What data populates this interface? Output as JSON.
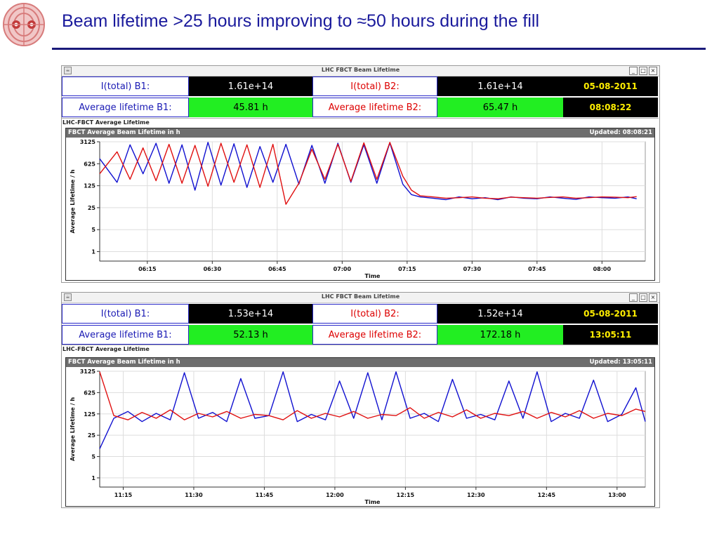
{
  "slide": {
    "title": "Beam lifetime >25 hours improving to ≈50 hours during the fill"
  },
  "windows": [
    {
      "window_title": "LHC FBCT Beam Lifetime",
      "i_total_b1_label": "I(total) B1:",
      "i_total_b1_value": "1.61e+14",
      "i_total_b2_label": "I(total) B2:",
      "i_total_b2_value": "1.61e+14",
      "avg_lifetime_b1_label": "Average lifetime B1:",
      "avg_lifetime_b1_value": "45.81 h",
      "avg_lifetime_b2_label": "Average lifetime B2:",
      "avg_lifetime_b2_value": "65.47 h",
      "date": "05-08-2011",
      "time": "08:08:22",
      "panel_label": "LHC-FBCT Average Lifetime",
      "chart_title": "FBCT Average Beam Lifetime in h",
      "updated": "Updated: 08:08:21"
    },
    {
      "window_title": "LHC FBCT Beam Lifetime",
      "i_total_b1_label": "I(total) B1:",
      "i_total_b1_value": "1.53e+14",
      "i_total_b2_label": "I(total) B2:",
      "i_total_b2_value": "1.52e+14",
      "avg_lifetime_b1_label": "Average lifetime B1:",
      "avg_lifetime_b1_value": "52.13 h",
      "avg_lifetime_b2_label": "Average lifetime B2:",
      "avg_lifetime_b2_value": "172.18 h",
      "date": "05-08-2011",
      "time": "13:05:11",
      "panel_label": "LHC-FBCT Average Lifetime",
      "chart_title": "FBCT Average Beam Lifetime in h",
      "updated": "Updated: 13:05:11"
    }
  ],
  "colors": {
    "b1": "#1010d0",
    "b2": "#e01010",
    "title": "#1a1a9c"
  },
  "chart_data": [
    {
      "type": "line",
      "title": "FBCT Average Beam Lifetime in h",
      "xlabel": "Time",
      "ylabel": "Average Lifetime / h",
      "y_scale": "log",
      "ylim": [
        0.5,
        3125
      ],
      "yticks": [
        1,
        5,
        25,
        125,
        625,
        3125
      ],
      "ytick_labels": [
        "1",
        "5",
        "25",
        "125",
        "625",
        "3125"
      ],
      "xlim": [
        "06:04",
        "08:10"
      ],
      "xticks": [
        "06:15",
        "06:30",
        "06:45",
        "07:00",
        "07:15",
        "07:30",
        "07:45",
        "08:00"
      ],
      "grid": true,
      "series": [
        {
          "color": "#1010d0",
          "x": [
            "06:04",
            "06:08",
            "06:11",
            "06:14",
            "06:17",
            "06:20",
            "06:23",
            "06:26",
            "06:29",
            "06:32",
            "06:35",
            "06:38",
            "06:41",
            "06:44",
            "06:47",
            "06:50",
            "06:53",
            "06:56",
            "06:59",
            "07:02",
            "07:05",
            "07:08",
            "07:11",
            "07:14",
            "07:16",
            "07:18",
            "07:21",
            "07:24",
            "07:27",
            "07:30",
            "07:33",
            "07:36",
            "07:39",
            "07:42",
            "07:45",
            "07:48",
            "07:51",
            "07:54",
            "07:57",
            "08:00",
            "08:03",
            "08:06",
            "08:08"
          ],
          "values": [
            900,
            160,
            2500,
            300,
            2800,
            150,
            2500,
            90,
            3000,
            130,
            2700,
            110,
            2200,
            160,
            2600,
            140,
            2400,
            150,
            2800,
            160,
            2500,
            150,
            2900,
            140,
            65,
            55,
            50,
            45,
            55,
            48,
            52,
            45,
            55,
            50,
            48,
            55,
            50,
            46,
            55,
            52,
            50,
            55,
            48
          ]
        },
        {
          "color": "#e01010",
          "x": [
            "06:04",
            "06:08",
            "06:11",
            "06:14",
            "06:17",
            "06:20",
            "06:23",
            "06:26",
            "06:29",
            "06:32",
            "06:35",
            "06:38",
            "06:41",
            "06:44",
            "06:47",
            "06:50",
            "06:53",
            "06:56",
            "06:59",
            "07:02",
            "07:05",
            "07:08",
            "07:11",
            "07:14",
            "07:16",
            "07:18",
            "07:21",
            "07:24",
            "07:27",
            "07:30",
            "07:33",
            "07:36",
            "07:39",
            "07:42",
            "07:45",
            "07:48",
            "07:51",
            "07:54",
            "07:57",
            "08:00",
            "08:03",
            "08:06",
            "08:08"
          ],
          "values": [
            300,
            1500,
            200,
            2000,
            180,
            2600,
            150,
            2400,
            120,
            2800,
            160,
            2500,
            110,
            2600,
            32,
            150,
            1800,
            200,
            2600,
            170,
            2900,
            200,
            3000,
            250,
            90,
            60,
            55,
            50,
            52,
            55,
            50,
            48,
            54,
            52,
            50,
            53,
            55,
            50,
            52,
            55,
            54,
            52,
            56
          ]
        }
      ]
    },
    {
      "type": "line",
      "title": "FBCT Average Beam Lifetime in h",
      "xlabel": "Time",
      "ylabel": "Average Lifetime / h",
      "y_scale": "log",
      "ylim": [
        0.5,
        3125
      ],
      "yticks": [
        1,
        5,
        25,
        125,
        625,
        3125
      ],
      "ytick_labels": [
        "1",
        "5",
        "25",
        "125",
        "625",
        "3125"
      ],
      "xlim": [
        "11:10",
        "13:06"
      ],
      "xticks": [
        "11:15",
        "11:30",
        "11:45",
        "12:00",
        "12:15",
        "12:30",
        "12:45",
        "13:00"
      ],
      "grid": true,
      "series": [
        {
          "color": "#1010d0",
          "x": [
            "11:10",
            "11:13",
            "11:16",
            "11:19",
            "11:22",
            "11:25",
            "11:28",
            "11:31",
            "11:34",
            "11:37",
            "11:40",
            "11:43",
            "11:46",
            "11:49",
            "11:52",
            "11:55",
            "11:58",
            "12:01",
            "12:04",
            "12:07",
            "12:10",
            "12:13",
            "12:16",
            "12:19",
            "12:22",
            "12:25",
            "12:28",
            "12:31",
            "12:34",
            "12:37",
            "12:40",
            "12:43",
            "12:46",
            "12:49",
            "12:52",
            "12:55",
            "12:58",
            "13:01",
            "13:04",
            "13:06"
          ],
          "values": [
            9,
            90,
            150,
            70,
            130,
            80,
            2800,
            90,
            140,
            70,
            1800,
            90,
            110,
            3000,
            70,
            120,
            80,
            1500,
            90,
            2800,
            80,
            3000,
            90,
            130,
            70,
            1700,
            90,
            120,
            80,
            1500,
            90,
            3000,
            70,
            130,
            90,
            1600,
            70,
            120,
            900,
            70
          ]
        },
        {
          "color": "#e01010",
          "x": [
            "11:10",
            "11:13",
            "11:16",
            "11:19",
            "11:22",
            "11:25",
            "11:28",
            "11:31",
            "11:34",
            "11:37",
            "11:40",
            "11:43",
            "11:46",
            "11:49",
            "11:52",
            "11:55",
            "11:58",
            "12:01",
            "12:04",
            "12:07",
            "12:10",
            "12:13",
            "12:16",
            "12:19",
            "12:22",
            "12:25",
            "12:28",
            "12:31",
            "12:34",
            "12:37",
            "12:40",
            "12:43",
            "12:46",
            "12:49",
            "12:52",
            "12:55",
            "12:58",
            "13:01",
            "13:04",
            "13:06"
          ],
          "values": [
            3000,
            110,
            80,
            140,
            90,
            170,
            80,
            130,
            100,
            150,
            90,
            120,
            110,
            80,
            160,
            90,
            130,
            100,
            150,
            90,
            120,
            110,
            200,
            90,
            140,
            100,
            170,
            90,
            130,
            110,
            150,
            90,
            140,
            100,
            160,
            90,
            130,
            110,
            180,
            150
          ]
        }
      ]
    }
  ]
}
